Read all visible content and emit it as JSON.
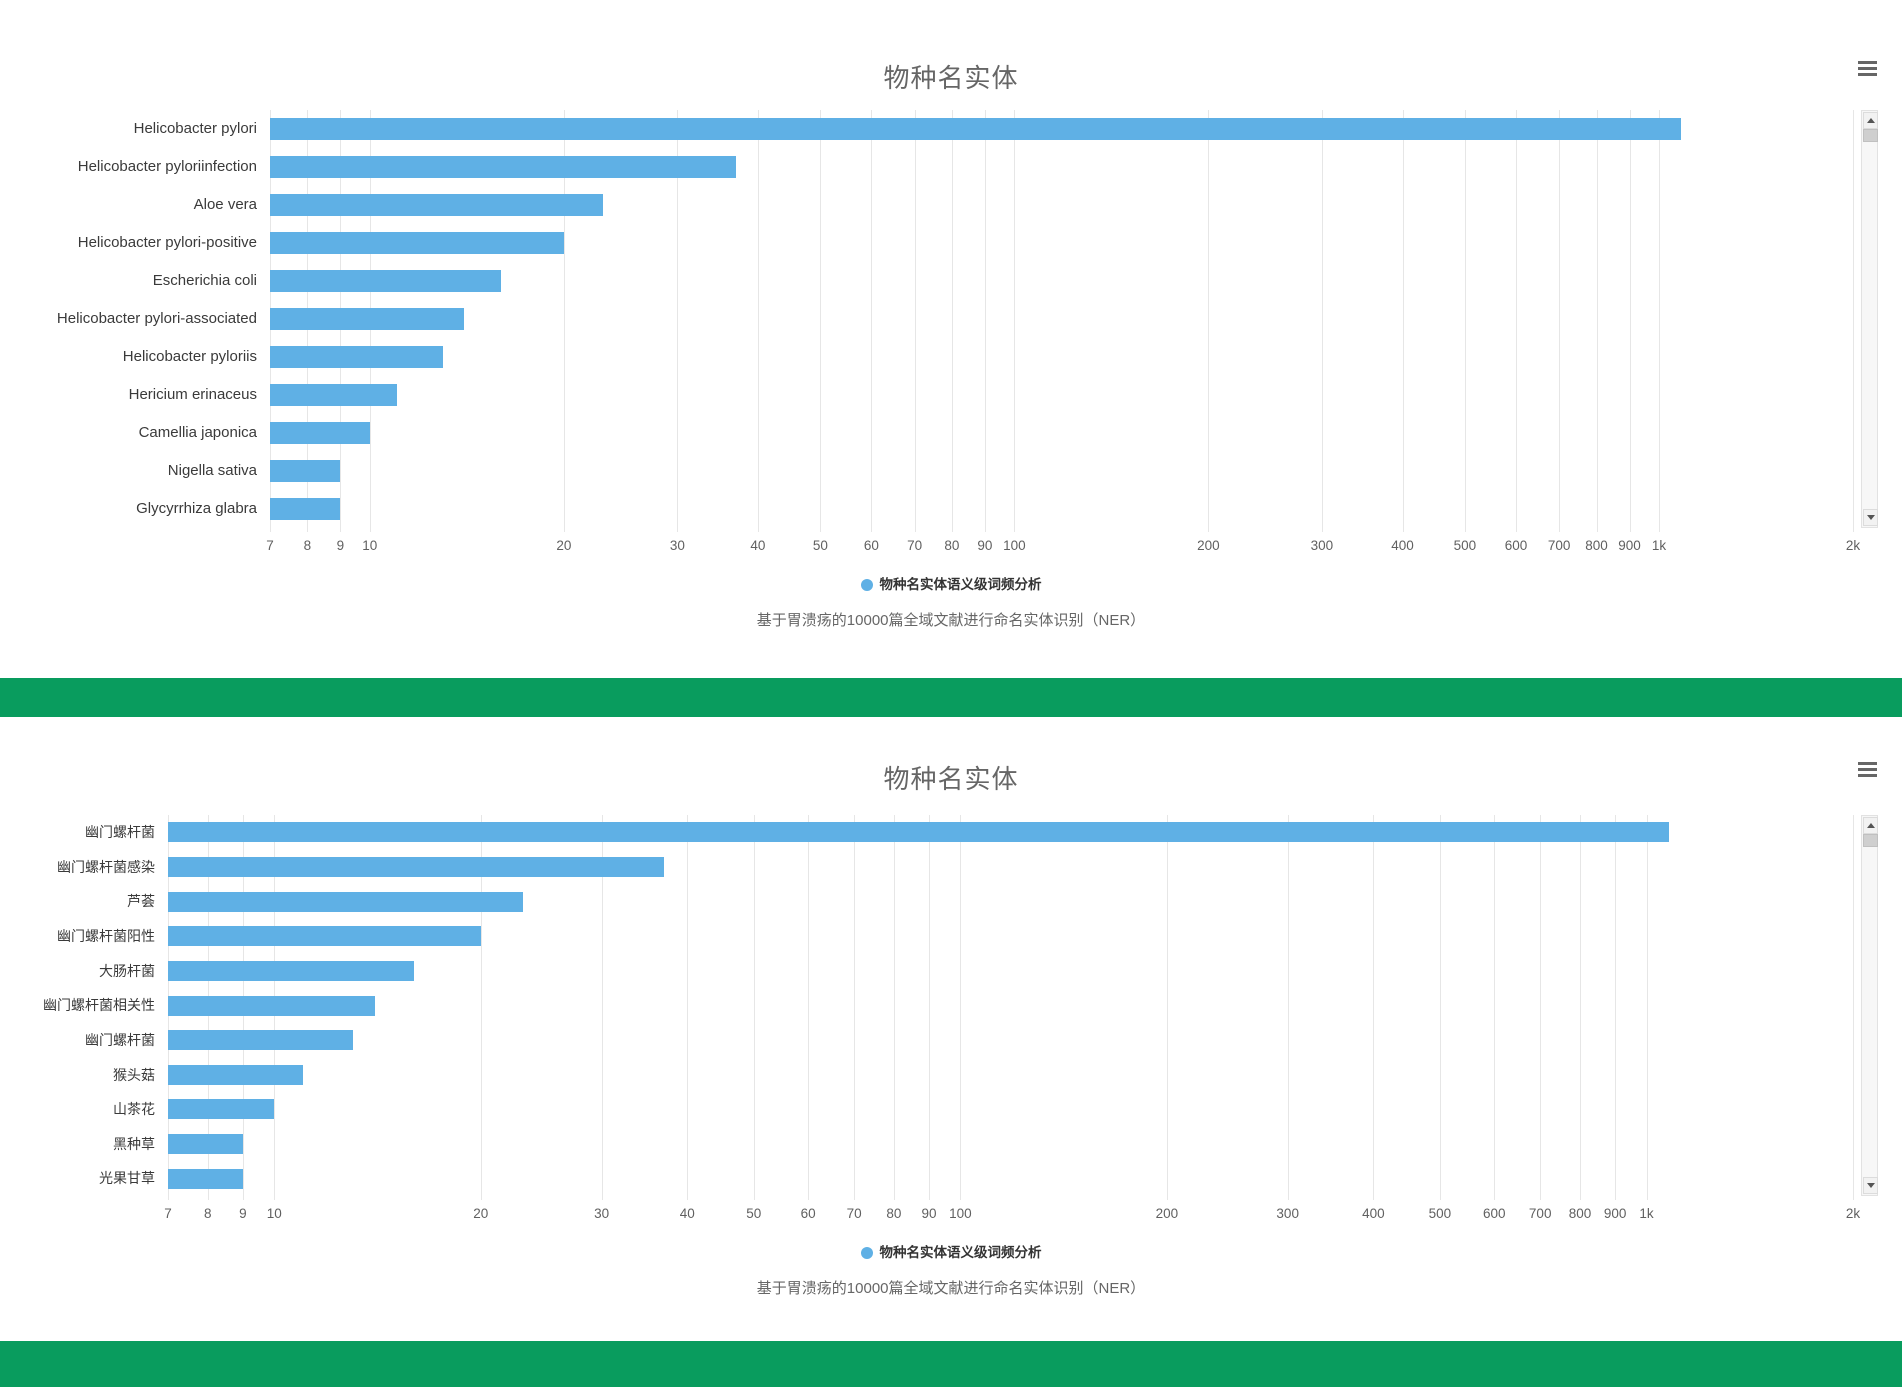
{
  "divider_color": "#099c5e",
  "bar_color": "#5fb0e5",
  "chart_data": [
    {
      "type": "bar",
      "orientation": "horizontal",
      "xscale": "log",
      "title": "物种名实体",
      "legend": "物种名实体语义级词频分析",
      "subtitle": "基于胃溃疡的10000篇全域文献进行命名实体识别（NER）",
      "bar_color": "#5fb0e5",
      "axis": {
        "min": 7,
        "max": 2000,
        "ticks": [
          7,
          8,
          9,
          10,
          20,
          30,
          40,
          50,
          60,
          70,
          80,
          90,
          100,
          200,
          300,
          400,
          500,
          600,
          700,
          800,
          900,
          1000,
          2000
        ],
        "tick_labels": [
          "7",
          "8",
          "9",
          "10",
          "20",
          "30",
          "40",
          "50",
          "60",
          "70",
          "80",
          "90",
          "100",
          "200",
          "300",
          "400",
          "500",
          "600",
          "700",
          "800",
          "900",
          "1k",
          "2k"
        ],
        "grid": true
      },
      "categories": [
        "Helicobacter pylori",
        "Helicobacter pyloriinfection",
        "Aloe vera",
        "Helicobacter pylori-positive",
        "Escherichia coli",
        "Helicobacter pylori-associated",
        "Helicobacter pyloriis",
        "Hericium erinaceus",
        "Camellia japonica",
        "Nigella sativa",
        "Glycyrrhiza glabra"
      ],
      "values": [
        1080,
        37,
        23,
        20,
        16,
        14,
        13,
        11,
        10,
        9,
        9
      ]
    },
    {
      "type": "bar",
      "orientation": "horizontal",
      "xscale": "log",
      "title": "物种名实体",
      "legend": "物种名实体语义级词频分析",
      "subtitle": "基于胃溃疡的10000篇全域文献进行命名实体识别（NER）",
      "bar_color": "#5fb0e5",
      "axis": {
        "min": 7,
        "max": 2000,
        "ticks": [
          7,
          8,
          9,
          10,
          20,
          30,
          40,
          50,
          60,
          70,
          80,
          90,
          100,
          200,
          300,
          400,
          500,
          600,
          700,
          800,
          900,
          1000,
          2000
        ],
        "tick_labels": [
          "7",
          "8",
          "9",
          "10",
          "20",
          "30",
          "40",
          "50",
          "60",
          "70",
          "80",
          "90",
          "100",
          "200",
          "300",
          "400",
          "500",
          "600",
          "700",
          "800",
          "900",
          "1k",
          "2k"
        ],
        "grid": true
      },
      "categories": [
        "幽门螺杆菌",
        "幽门螺杆菌感染",
        "芦荟",
        "幽门螺杆菌阳性",
        "大肠杆菌",
        "幽门螺杆菌相关性",
        "幽门螺杆菌",
        "猴头菇",
        "山茶花",
        "黑种草",
        "光果甘草"
      ],
      "values": [
        1080,
        37,
        23,
        20,
        16,
        14,
        13,
        11,
        10,
        9,
        9
      ]
    }
  ]
}
